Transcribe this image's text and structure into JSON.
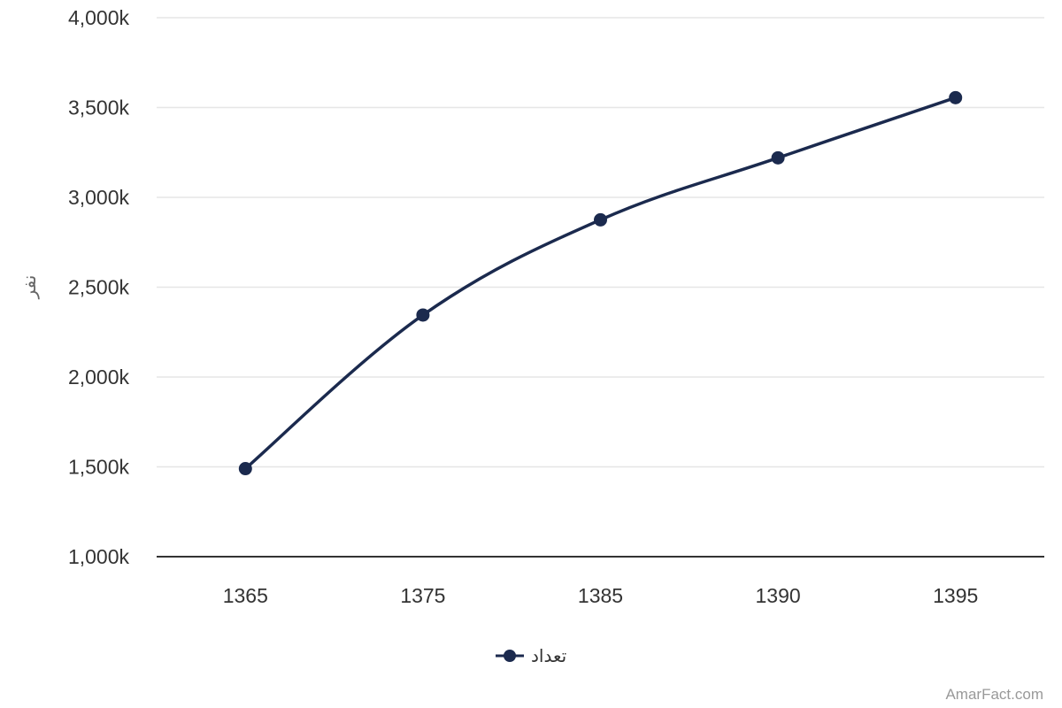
{
  "chart_data": {
    "type": "line",
    "title": "",
    "xlabel": "",
    "ylabel": "نفر",
    "categories": [
      "1365",
      "1375",
      "1385",
      "1390",
      "1395"
    ],
    "series": [
      {
        "name": "تعداد",
        "values": [
          1490000,
          2345000,
          2875000,
          3220000,
          3555000
        ],
        "color": "#1b2a4e"
      }
    ],
    "ylim": [
      1000000,
      4000000
    ],
    "yticks": [
      1000000,
      1500000,
      2000000,
      2500000,
      3000000,
      3500000,
      4000000
    ],
    "ytick_labels": [
      "1,000k",
      "1,500k",
      "2,000k",
      "2,500k",
      "3,000k",
      "3,500k",
      "4,000k"
    ],
    "grid": true,
    "smooth": true,
    "legend_position": "bottom-center"
  },
  "credit": "AmarFact.com",
  "colors": {
    "line": "#1b2a4e",
    "grid": "#e6e6e6",
    "axis": "#333333"
  }
}
